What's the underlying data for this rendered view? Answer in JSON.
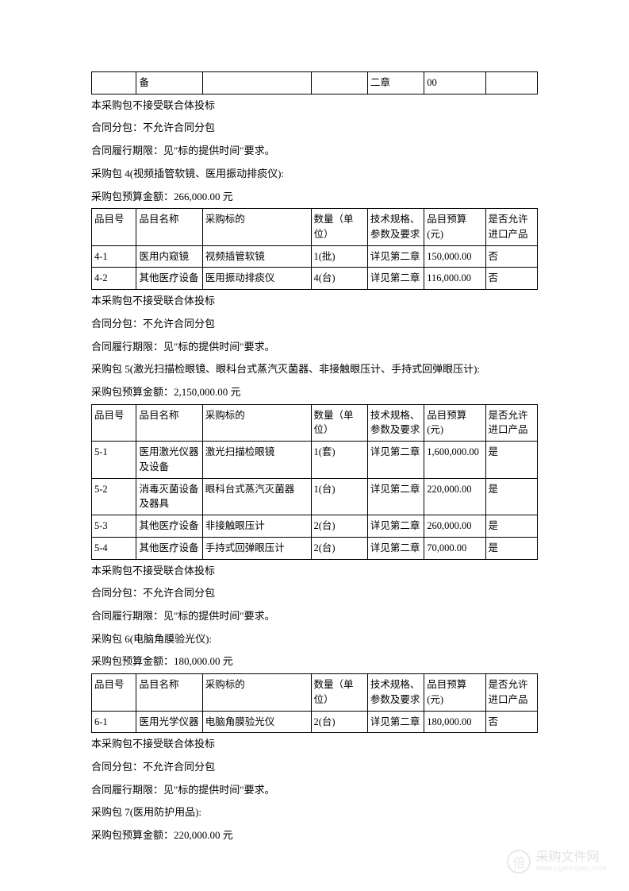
{
  "colors": {
    "text": "#000000",
    "border": "#000000",
    "background": "#ffffff",
    "watermark": "#999999"
  },
  "typography": {
    "body_fontsize": 13,
    "table_fontsize": 12.5,
    "font_family": "SimSun"
  },
  "col_widths": [
    "9.5%",
    "14%",
    "23%",
    "12%",
    "12%",
    "13%",
    "11%"
  ],
  "frag_row": [
    "",
    "备",
    "",
    "",
    "",
    "二章",
    "00",
    ""
  ],
  "notes_a": [
    "本采购包不接受联合体投标",
    "合同分包：不允许合同分包",
    "合同履行期限：见\"标的提供时间\"要求。",
    "采购包 4(视频插管软镜、医用振动排痰仪):",
    "采购包预算金额：266,000.00 元"
  ],
  "table_header": [
    "品目号",
    "品目名称",
    "采购标的",
    "数量（单位）",
    "技术规格、参数及要求",
    "品目预算(元)",
    "是否允许进口产品"
  ],
  "table4_rows": [
    [
      "4-1",
      "医用内窥镜",
      "视频插管软镜",
      "1(批)",
      "详见第二章",
      "150,000.00",
      "否"
    ],
    [
      "4-2",
      "其他医疗设备",
      "医用振动排痰仪",
      "4(台)",
      "详见第二章",
      "116,000.00",
      "否"
    ]
  ],
  "notes_b": [
    "本采购包不接受联合体投标",
    "合同分包：不允许合同分包",
    "合同履行期限：见\"标的提供时间\"要求。",
    "采购包 5(激光扫描检眼镜、眼科台式蒸汽灭菌器、非接触眼压计、手持式回弹眼压计):",
    "采购包预算金额：2,150,000.00 元"
  ],
  "table5_rows": [
    [
      "5-1",
      "医用激光仪器及设备",
      "激光扫描检眼镜",
      "1(套)",
      "详见第二章",
      "1,600,000.00",
      "是"
    ],
    [
      "5-2",
      "消毒灭菌设备及器具",
      "眼科台式蒸汽灭菌器",
      "1(台)",
      "详见第二章",
      "220,000.00",
      "是"
    ],
    [
      "5-3",
      "其他医疗设备",
      "非接触眼压计",
      "2(台)",
      "详见第二章",
      "260,000.00",
      "是"
    ],
    [
      "5-4",
      "其他医疗设备",
      "手持式回弹眼压计",
      "2(台)",
      "详见第二章",
      "70,000.00",
      "是"
    ]
  ],
  "notes_c": [
    "本采购包不接受联合体投标",
    "合同分包：不允许合同分包",
    "合同履行期限：见\"标的提供时间\"要求。",
    "采购包 6(电脑角膜验光仪):",
    "采购包预算金额：180,000.00 元"
  ],
  "table6_rows": [
    [
      "6-1",
      "医用光学仪器",
      "电脑角膜验光仪",
      "2(台)",
      "详见第二章",
      "180,000.00",
      "否"
    ]
  ],
  "notes_d": [
    "本采购包不接受联合体投标",
    "合同分包：不允许合同分包",
    "合同履行期限：见\"标的提供时间\"要求。",
    "采购包 7(医用防护用品):",
    "采购包预算金额：220,000.00 元"
  ],
  "watermark": {
    "glyph": "倍",
    "main": "采购文件网",
    "sub": "www.cgwenjian.com"
  }
}
